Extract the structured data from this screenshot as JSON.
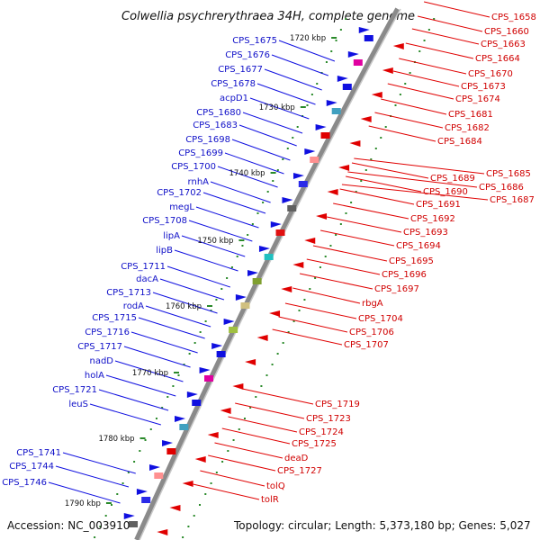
{
  "title": "Colwellia psychrerythraea 34H, complete genome",
  "footer": {
    "accession": "Accession: NC_003910",
    "topology": "Topology: circular; Length: 5,373,180 bp; Genes: 5,027"
  },
  "colors": {
    "forward": "#0000ee",
    "reverse": "#ee0000",
    "backbone": "#888888",
    "tick": "#2a8a2a"
  },
  "kbp_marks": [
    "1720 kbp",
    "1730 kbp",
    "1740 kbp",
    "1750 kbp",
    "1760 kbp",
    "1770 kbp",
    "1780 kbp",
    "1790 kbp"
  ],
  "left_labels": [
    "CPS_1675",
    "CPS_1676",
    "CPS_1677",
    "CPS_1678",
    "acpD1",
    "CPS_1680",
    "CPS_1683",
    "CPS_1698",
    "CPS_1699",
    "CPS_1700",
    "rnhA",
    "CPS_1702",
    "megL",
    "CPS_1708",
    "lipA",
    "lipB",
    "CPS_1711",
    "dacA",
    "CPS_1713",
    "rodA",
    "CPS_1715",
    "CPS_1716",
    "CPS_1717",
    "nadD",
    "holA",
    "CPS_1721",
    "leuS",
    "CPS_1741",
    "CPS_1744",
    "CPS_1746"
  ],
  "right_labels": [
    "CPS_1658",
    "CPS_1660",
    "CPS_1663",
    "CPS_1664",
    "CPS_1670",
    "CPS_1673",
    "CPS_1674",
    "CPS_1681",
    "CPS_1682",
    "CPS_1684",
    "CPS_1685",
    "CPS_1686",
    "CPS_1687",
    "CPS_1689",
    "CPS_1690",
    "CPS_1691",
    "CPS_1692",
    "CPS_1693",
    "CPS_1694",
    "CPS_1695",
    "CPS_1696",
    "CPS_1697",
    "rbgA",
    "CPS_1704",
    "CPS_1706",
    "CPS_1707",
    "CPS_1719",
    "CPS_1723",
    "CPS_1724",
    "CPS_1725",
    "deaD",
    "CPS_1727",
    "tolQ",
    "tolR"
  ]
}
